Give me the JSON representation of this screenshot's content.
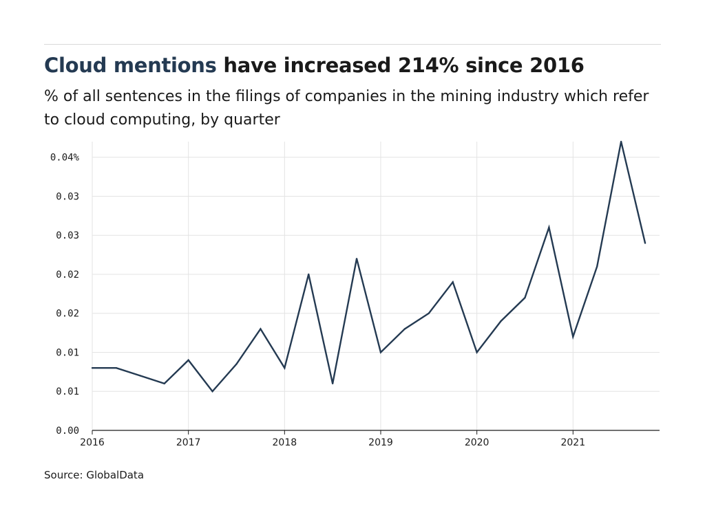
{
  "header": {
    "title_highlight": "Cloud mentions",
    "title_rest": " have increased 214% since 2016",
    "subtitle": "% of all sentences in the filings of companies in the mining industry which refer to cloud computing, by quarter"
  },
  "footer": {
    "source": "Source: GlobalData"
  },
  "colors": {
    "line": "#243a52",
    "accent": "#243a52",
    "grid": "#e3e3e3"
  },
  "chart_data": {
    "type": "line",
    "x_tick_labels": [
      "2016",
      "2017",
      "2018",
      "2019",
      "2020",
      "2021"
    ],
    "y_tick_labels": [
      "0.00",
      "0.01",
      "0.01",
      "0.02",
      "0.02",
      "0.03",
      "0.03",
      "0.04%"
    ],
    "y_ticks": [
      0,
      0.005,
      0.01,
      0.015,
      0.02,
      0.025,
      0.03,
      0.035
    ],
    "x_range": [
      2016,
      2021.9
    ],
    "y_range": [
      0,
      0.037
    ],
    "grid": true,
    "x": [
      2016.0,
      2016.25,
      2016.5,
      2016.75,
      2017.0,
      2017.25,
      2017.5,
      2017.75,
      2018.0,
      2018.25,
      2018.5,
      2018.75,
      2019.0,
      2019.25,
      2019.5,
      2019.75,
      2020.0,
      2020.25,
      2020.5,
      2020.75,
      2021.0,
      2021.25,
      2021.5,
      2021.75
    ],
    "series": [
      {
        "values": [
          0.008,
          0.008,
          0.007,
          0.006,
          0.009,
          0.005,
          0.0085,
          0.013,
          0.008,
          0.02,
          0.006,
          0.022,
          0.01,
          0.013,
          0.015,
          0.019,
          0.01,
          0.014,
          0.017,
          0.026,
          0.012,
          0.021,
          0.037,
          0.024
        ]
      }
    ]
  }
}
